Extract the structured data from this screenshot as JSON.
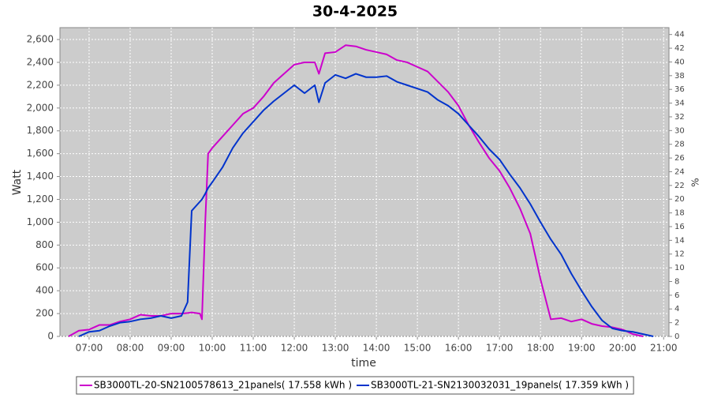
{
  "chart_data": {
    "type": "line",
    "title": "30-4-2025",
    "xlabel": "time",
    "ylabel": "Watt",
    "y2label": "%",
    "x": [
      6.5,
      6.75,
      7,
      7.25,
      7.5,
      7.75,
      8,
      8.25,
      8.5,
      8.75,
      9,
      9.25,
      9.4,
      9.5,
      9.7,
      9.75,
      9.83,
      9.9,
      10,
      10.25,
      10.5,
      10.75,
      11,
      11.25,
      11.5,
      11.75,
      12,
      12.25,
      12.5,
      12.6,
      12.75,
      13,
      13.25,
      13.5,
      13.75,
      14,
      14.25,
      14.5,
      14.75,
      15,
      15.25,
      15.5,
      15.75,
      16,
      16.25,
      16.5,
      16.75,
      17,
      17.25,
      17.5,
      17.75,
      18,
      18.25,
      18.5,
      18.75,
      19,
      19.25,
      19.5,
      19.75,
      20,
      20.25,
      20.5,
      20.75
    ],
    "series": [
      {
        "name": "SB3000TL-20-SN2100578613_21panels( 17.558 kWh )",
        "color": "#cc00cc",
        "values": [
          0,
          50,
          60,
          100,
          100,
          130,
          150,
          190,
          180,
          180,
          200,
          200,
          205,
          210,
          200,
          150,
          1000,
          1600,
          1650,
          1750,
          1850,
          1950,
          2000,
          2100,
          2220,
          2300,
          2380,
          2400,
          2400,
          2300,
          2480,
          2490,
          2550,
          2540,
          2510,
          2490,
          2470,
          2420,
          2400,
          2360,
          2320,
          2230,
          2140,
          2020,
          1850,
          1700,
          1560,
          1450,
          1300,
          1120,
          900,
          500,
          150,
          160,
          130,
          150,
          110,
          90,
          80,
          60,
          20,
          0,
          null
        ]
      },
      {
        "name": "SB3000TL-21-SN2130032031_19panels( 17.359 kWh )",
        "color": "#0033cc",
        "values": [
          null,
          0,
          40,
          50,
          90,
          120,
          130,
          150,
          160,
          180,
          160,
          180,
          300,
          1100,
          1180,
          1200,
          1250,
          1300,
          1350,
          1480,
          1650,
          1780,
          1880,
          1980,
          2060,
          2130,
          2200,
          2130,
          2200,
          2050,
          2220,
          2290,
          2260,
          2300,
          2270,
          2270,
          2280,
          2230,
          2200,
          2170,
          2140,
          2070,
          2020,
          1950,
          1850,
          1750,
          1640,
          1550,
          1420,
          1300,
          1160,
          1000,
          850,
          720,
          550,
          400,
          260,
          140,
          70,
          50,
          40,
          20,
          0
        ]
      }
    ],
    "xlim": [
      6.29,
      21.13
    ],
    "xticks": [
      {
        "value": 7,
        "label": "07:00"
      },
      {
        "value": 8,
        "label": "08:00"
      },
      {
        "value": 9,
        "label": "09:00"
      },
      {
        "value": 10,
        "label": "10:00"
      },
      {
        "value": 11,
        "label": "11:00"
      },
      {
        "value": 12,
        "label": "12:00"
      },
      {
        "value": 13,
        "label": "13:00"
      },
      {
        "value": 14,
        "label": "14:00"
      },
      {
        "value": 15,
        "label": "15:00"
      },
      {
        "value": 16,
        "label": "16:00"
      },
      {
        "value": 17,
        "label": "17:00"
      },
      {
        "value": 18,
        "label": "18:00"
      },
      {
        "value": 19,
        "label": "19:00"
      },
      {
        "value": 20,
        "label": "20:00"
      },
      {
        "value": 21,
        "label": "21:00"
      }
    ],
    "ylim": [
      0,
      2704
    ],
    "yticks": [
      0,
      200,
      400,
      600,
      800,
      {
        "value": 1000,
        "label": "1,000"
      },
      {
        "value": 1200,
        "label": "1,200"
      },
      {
        "value": 1400,
        "label": "1,400"
      },
      {
        "value": 1600,
        "label": "1,600"
      },
      {
        "value": 1800,
        "label": "1,800"
      },
      {
        "value": 2000,
        "label": "2,000"
      },
      {
        "value": 2200,
        "label": "2,200"
      },
      {
        "value": 2400,
        "label": "2,400"
      },
      {
        "value": 2600,
        "label": "2,600"
      }
    ],
    "y2lim": [
      0,
      45
    ],
    "y2ticks": [
      0,
      2,
      4,
      6,
      8,
      10,
      12,
      14,
      16,
      18,
      20,
      22,
      24,
      26,
      28,
      30,
      32,
      34,
      36,
      38,
      40,
      42,
      44
    ],
    "grid": true,
    "legend": "bottom",
    "background": "#cccccc"
  }
}
